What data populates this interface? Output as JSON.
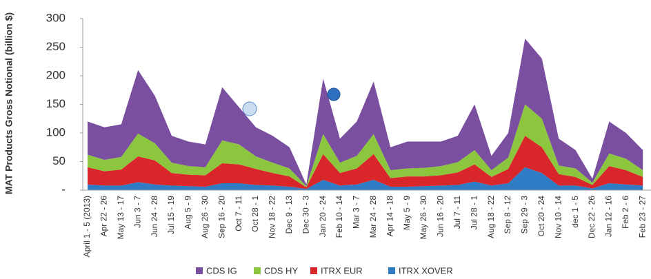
{
  "chart_data": {
    "type": "stacked_area",
    "y_label": "MAT Products Gross Notional (billion $)",
    "categories": [
      "April 1 - 5 (2013)",
      "Apr 22 - 26",
      "May 13 - 17",
      "Jun 3 - 7",
      "Jun 24 - 28",
      "Jul 15 - 19",
      "Aug 5 - 9",
      "Aug 26 - 30",
      "Sep 16 - 20",
      "Oct 7 - 11",
      "Oct 28 - 1",
      "Nov 18 - 22",
      "Dec 9 - 13",
      "Dec 30 - 3",
      "Jan 20 - 24",
      "Feb 10 - 14",
      "Mar 3 - 7",
      "Mar 24 - 28",
      "Apr 14 - 18",
      "May 5 - 9",
      "May 26 - 30",
      "Jun 16 - 20",
      "Jul 7 - 11",
      "Jul 28 - 1",
      "Aug 18 - 22",
      "Sep 8 - 12",
      "Sep 29 - 3",
      "Oct 20 - 24",
      "Nov 10 - 14",
      "dec 1 - 5",
      "Dec 22 - 26",
      "Jan 12 - 16",
      "Feb 2 - 6",
      "Feb 23 - 27"
    ],
    "series": [
      {
        "name": "CDS IG",
        "color": "#7b4fa0",
        "values": [
          58,
          57,
          57,
          111,
          83,
          47,
          43,
          40,
          93,
          65,
          51,
          47,
          37,
          3,
          97,
          42,
          60,
          92,
          40,
          47,
          46,
          43,
          46,
          80,
          25,
          43,
          115,
          105,
          47,
          32,
          7,
          56,
          45,
          35
        ]
      },
      {
        "name": "CDS HY",
        "color": "#8cc63e",
        "values": [
          22,
          20,
          22,
          40,
          30,
          18,
          15,
          14,
          40,
          35,
          22,
          18,
          14,
          2,
          35,
          18,
          22,
          35,
          14,
          14,
          15,
          16,
          18,
          25,
          12,
          20,
          55,
          50,
          15,
          15,
          4,
          22,
          20,
          12
        ]
      },
      {
        "name": "ITRX EUR",
        "color": "#d9262a",
        "values": [
          30,
          25,
          28,
          45,
          42,
          22,
          20,
          20,
          35,
          33,
          28,
          22,
          18,
          3,
          45,
          22,
          28,
          45,
          15,
          18,
          17,
          18,
          22,
          30,
          15,
          25,
          55,
          45,
          20,
          15,
          6,
          30,
          25,
          15
        ]
      },
      {
        "name": "ITRX XOVER",
        "color": "#2f7cc4",
        "values": [
          10,
          8,
          8,
          14,
          10,
          8,
          7,
          6,
          12,
          12,
          9,
          8,
          6,
          2,
          18,
          8,
          10,
          18,
          6,
          6,
          7,
          8,
          9,
          15,
          8,
          12,
          40,
          30,
          8,
          8,
          3,
          12,
          10,
          8
        ]
      }
    ],
    "ylim": [
      0,
      300
    ],
    "yticks": [
      {
        "value": 0,
        "label": "-"
      },
      50,
      100,
      150,
      200,
      250,
      300
    ],
    "legend": "bottom"
  }
}
